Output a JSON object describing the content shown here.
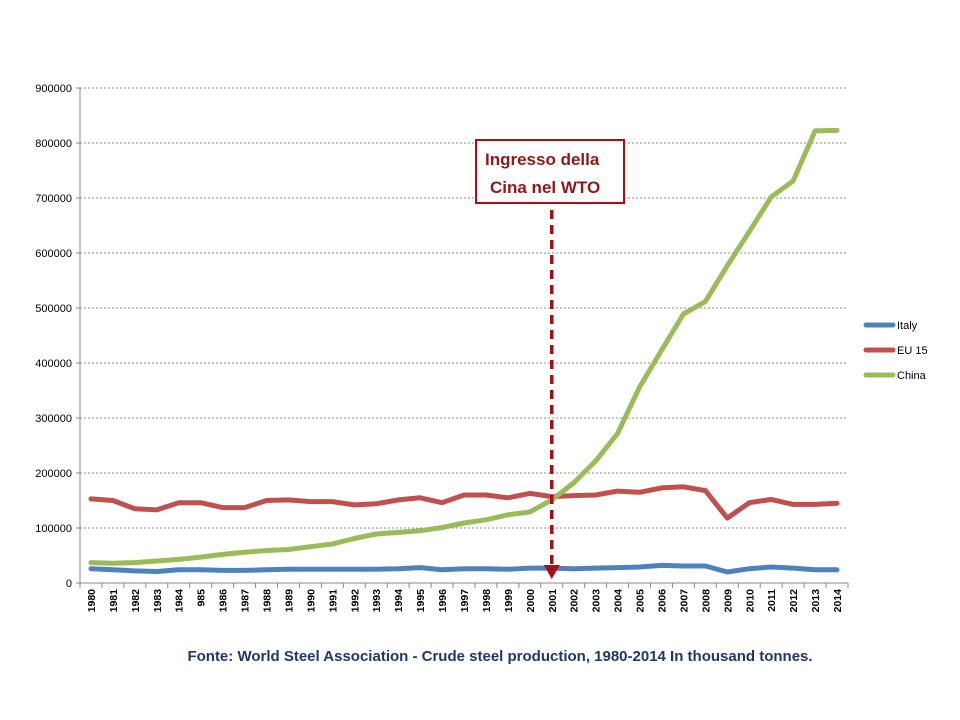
{
  "chart_data": {
    "type": "line",
    "title": "",
    "xlabel": "",
    "ylabel": "",
    "ylim": [
      0,
      900000
    ],
    "yticks": [
      0,
      100000,
      200000,
      300000,
      400000,
      500000,
      600000,
      700000,
      800000,
      900000
    ],
    "categories": [
      "1980",
      "1981",
      "1982",
      "1983",
      "1984",
      "985",
      "1986",
      "1987",
      "1988",
      "1989",
      "1990",
      "1991",
      "1992",
      "1993",
      "1994",
      "1995",
      "1996",
      "1997",
      "1998",
      "1999",
      "2000",
      "2001",
      "2002",
      "2003",
      "2004",
      "2005",
      "2006",
      "2007",
      "2008",
      "2009",
      "2010",
      "2011",
      "2012",
      "2013",
      "2014"
    ],
    "grid": "horizontal",
    "legend_position": "right",
    "series": [
      {
        "name": "Italy",
        "color": "#4f81bd",
        "values": [
          26000,
          24000,
          22000,
          21000,
          24000,
          24000,
          23000,
          23000,
          24000,
          25000,
          25000,
          25000,
          25000,
          25000,
          26000,
          28000,
          24000,
          26000,
          26000,
          25000,
          27000,
          27000,
          26000,
          27000,
          28000,
          29000,
          32000,
          31000,
          31000,
          20000,
          26000,
          29000,
          27000,
          24000,
          24000
        ]
      },
      {
        "name": "EU 15",
        "color": "#c0504d",
        "values": [
          153000,
          150000,
          135000,
          133000,
          146000,
          146000,
          137000,
          137000,
          150000,
          151000,
          148000,
          148000,
          142000,
          144000,
          151000,
          155000,
          146000,
          160000,
          160000,
          155000,
          163000,
          157000,
          159000,
          160000,
          167000,
          165000,
          173000,
          175000,
          168000,
          118000,
          146000,
          152000,
          143000,
          143000,
          145000
        ]
      },
      {
        "name": "China",
        "color": "#9bbb59",
        "values": [
          37000,
          36000,
          37000,
          40000,
          43000,
          47000,
          52000,
          56000,
          59000,
          61000,
          66000,
          71000,
          81000,
          89000,
          92000,
          95000,
          101000,
          109000,
          115000,
          124000,
          129000,
          151000,
          182000,
          222000,
          272000,
          356000,
          423000,
          489000,
          512000,
          577000,
          639000,
          702000,
          731000,
          822000,
          823000
        ]
      }
    ],
    "annotation": {
      "text_line1": "Ingresso della",
      "text_line2": "Cina nel WTO",
      "x": "2001",
      "color": "#a50f15"
    }
  },
  "caption": "Fonte: World Steel Association - Crude steel production, 1980-2014 In thousand tonnes."
}
